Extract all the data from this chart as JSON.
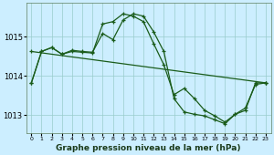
{
  "title": "Graphe pression niveau de la mer (hPa)",
  "bg_color": "#cceeff",
  "grid_color": "#99cccc",
  "line_color": "#1a5c1a",
  "xlabel_fontsize": 6,
  "ylabel_fontsize": 6,
  "title_fontsize": 6.5,
  "xlim": [
    -0.5,
    23.5
  ],
  "ylim": [
    1012.55,
    1015.85
  ],
  "yticks": [
    1013,
    1014,
    1015
  ],
  "xticks": [
    0,
    1,
    2,
    3,
    4,
    5,
    6,
    7,
    8,
    9,
    10,
    11,
    12,
    13,
    14,
    15,
    16,
    17,
    18,
    19,
    20,
    21,
    22,
    23
  ],
  "figwidth": 3.0,
  "figheight": 1.7,
  "series1_x": [
    0,
    1,
    2,
    3,
    4,
    5,
    6,
    7,
    8,
    9,
    10,
    11,
    12,
    13,
    14,
    15,
    16,
    17,
    18,
    19,
    20,
    21,
    22,
    23
  ],
  "series1_y": [
    1013.82,
    1014.62,
    1014.72,
    1014.55,
    1014.62,
    1014.6,
    1014.58,
    1015.32,
    1015.38,
    1015.58,
    1015.52,
    1015.38,
    1014.82,
    1014.28,
    1013.52,
    1013.68,
    1013.42,
    1013.12,
    1012.98,
    1012.82,
    1013.02,
    1013.18,
    1013.78,
    1013.82
  ],
  "series2_x": [
    0,
    1,
    2,
    3,
    4,
    5,
    6,
    7,
    8,
    9,
    10,
    11,
    12,
    13,
    14,
    15,
    16,
    17,
    18,
    19,
    20,
    21,
    22,
    23
  ],
  "series2_y": [
    1013.82,
    1014.62,
    1014.72,
    1014.55,
    1014.65,
    1014.62,
    1014.6,
    1015.08,
    1014.92,
    1015.42,
    1015.58,
    1015.52,
    1015.12,
    1014.62,
    1013.42,
    1013.08,
    1013.02,
    1012.98,
    1012.88,
    1012.78,
    1013.02,
    1013.12,
    1013.82,
    1013.82
  ],
  "series3_x": [
    0,
    23
  ],
  "series3_y": [
    1014.62,
    1013.82
  ]
}
